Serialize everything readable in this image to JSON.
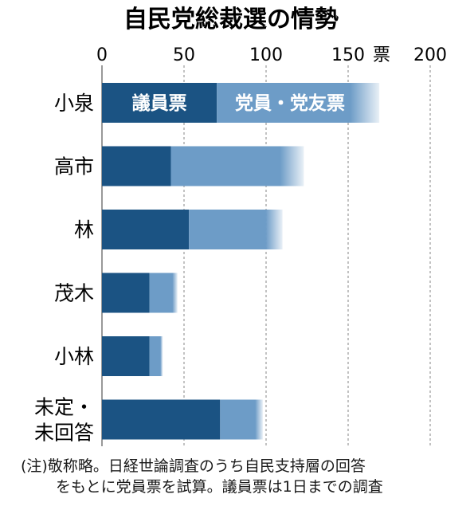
{
  "chart_data": {
    "type": "bar",
    "orientation": "horizontal",
    "stacked": true,
    "title": "自民党総裁選の情勢",
    "unit": "票",
    "xlim": [
      0,
      200
    ],
    "xticks": [
      0,
      50,
      100,
      150,
      200
    ],
    "grid": "vertical-dashed",
    "categories": [
      {
        "label": "小泉",
        "lines": [
          "小泉"
        ]
      },
      {
        "label": "高市",
        "lines": [
          "高市"
        ]
      },
      {
        "label": "林",
        "lines": [
          "林"
        ]
      },
      {
        "label": "茂木",
        "lines": [
          "茂木"
        ]
      },
      {
        "label": "小林",
        "lines": [
          "小林"
        ]
      },
      {
        "label": "未定・未回答",
        "lines": [
          "未定・",
          "未回答"
        ]
      }
    ],
    "series": [
      {
        "name": "議員票",
        "color": "#1b5383",
        "values": [
          70,
          42,
          53,
          29,
          29,
          72
        ]
      },
      {
        "name": "党員・党友票",
        "color": "#6d9cc7",
        "values": [
          99,
          81,
          57,
          17,
          8,
          26
        ]
      }
    ]
  },
  "note": {
    "line1": "(注)敬称略。日経世論調査のうち自民支持層の回答",
    "line2": "をもとに党員票を試算。議員票は1日までの調査"
  }
}
